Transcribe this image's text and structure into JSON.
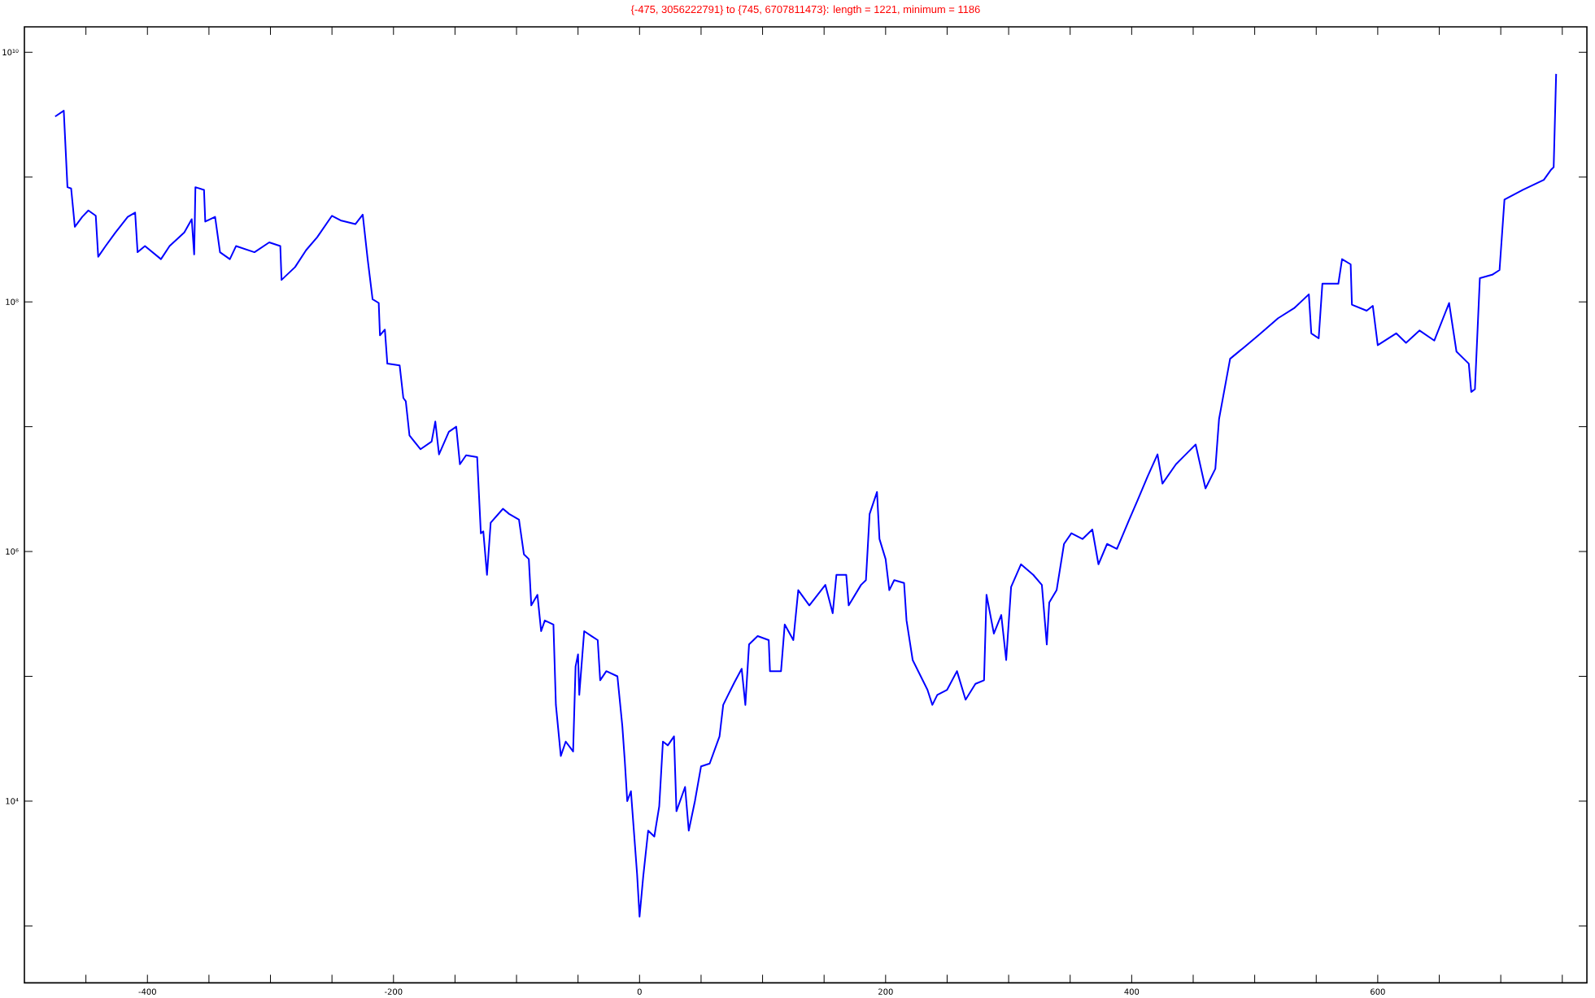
{
  "chart_data": {
    "type": "line",
    "title": "{-475, 3056222791} to {745, 6707811473}:      length = 1221, minimum = 1186",
    "log": "y",
    "color": "#0000ff",
    "xlim": [
      -500,
      770
    ],
    "ylim": [
      350,
      16000000000
    ],
    "xticks": [
      {
        "value": -450,
        "label": null
      },
      -400,
      {
        "value": -350,
        "label": null
      },
      -200,
      {
        "value": -300,
        "label": null
      },
      {
        "value": -250,
        "label": null
      },
      {
        "value": -150,
        "label": null
      },
      {
        "value": -100,
        "label": null
      },
      {
        "value": -50,
        "label": null
      },
      0,
      {
        "value": 50,
        "label": null
      },
      {
        "value": 100,
        "label": null
      },
      {
        "value": 150,
        "label": null
      },
      200,
      {
        "value": 250,
        "label": null
      },
      {
        "value": 300,
        "label": null
      },
      {
        "value": 350,
        "label": null
      },
      400,
      {
        "value": 450,
        "label": null
      },
      {
        "value": 500,
        "label": null
      },
      {
        "value": 550,
        "label": null
      },
      600,
      {
        "value": 650,
        "label": null
      },
      {
        "value": 700,
        "label": null
      },
      {
        "value": 750,
        "label": null
      }
    ],
    "yticks": [
      {
        "value": 1000,
        "label": null
      },
      {
        "value": 10000,
        "label": "10⁴"
      },
      {
        "value": 100000,
        "label": null
      },
      {
        "value": 1000000,
        "label": "10⁶"
      },
      {
        "value": 10000000,
        "label": null
      },
      {
        "value": 100000000,
        "label": "10⁸"
      },
      {
        "value": 1000000000,
        "label": null
      },
      {
        "value": 10000000000,
        "label": "10¹⁰"
      }
    ],
    "x": [
      -475,
      -468,
      -465,
      -462,
      -459,
      -453,
      -448,
      -442,
      -440,
      -434,
      -426,
      -416,
      -410,
      -408,
      -402,
      -389,
      -382,
      -370,
      -364,
      -362,
      -361,
      -354,
      -353,
      -345,
      -341,
      -333,
      -328,
      -313,
      -301,
      -292,
      -291,
      -280,
      -271,
      -262,
      -250,
      -243,
      -231,
      -225,
      -221,
      -217,
      -212,
      -211,
      -207,
      -205,
      -195,
      -192,
      -190,
      -187,
      -178,
      -169,
      -166,
      -163,
      -155,
      -149,
      -146,
      -141,
      -132,
      -129,
      -127,
      -124,
      -121,
      -111,
      -106,
      -98,
      -94,
      -90,
      -88,
      -83,
      -80,
      -77,
      -70,
      -68,
      -64,
      -60,
      -54,
      -52,
      -50,
      -49,
      -45,
      -39,
      -34,
      -32,
      -27,
      -18,
      -14,
      -12,
      -10,
      -7,
      -2,
      0,
      3,
      7,
      12,
      16,
      19,
      23,
      28,
      30,
      37,
      40,
      45,
      50,
      57,
      65,
      68,
      72,
      77,
      83,
      86,
      89,
      96,
      105,
      106,
      115,
      118,
      125,
      129,
      138,
      151,
      157,
      160,
      168,
      170,
      180,
      184,
      187,
      193,
      195,
      200,
      203,
      207,
      215,
      217,
      222,
      234,
      238,
      242,
      250,
      258,
      265,
      273,
      280,
      282,
      288,
      294,
      298,
      302,
      310,
      320,
      327,
      331,
      333,
      339,
      345,
      351,
      360,
      368,
      373,
      380,
      388,
      398,
      405,
      413,
      421,
      425,
      436,
      444,
      452,
      460,
      468,
      471,
      480,
      491,
      503,
      519,
      532,
      544,
      546,
      552,
      555,
      568,
      571,
      578,
      579,
      591,
      596,
      600,
      615,
      623,
      634,
      646,
      658,
      664,
      674,
      676,
      679,
      683,
      693,
      699,
      703,
      718,
      735,
      741,
      743,
      745
    ],
    "values": [
      3056222791,
      3400000000.0,
      830000000.0,
      810000000.0,
      400000000.0,
      480000000.0,
      540000000.0,
      490000000.0,
      230000000.0,
      280000000.0,
      360000000.0,
      480000000.0,
      520000000.0,
      250000000.0,
      280000000.0,
      220000000.0,
      280000000.0,
      360000000.0,
      460000000.0,
      240000000.0,
      830000000.0,
      790000000.0,
      440000000.0,
      480000000.0,
      250000000.0,
      220000000.0,
      280000000.0,
      250000000.0,
      300000000.0,
      280000000.0,
      150000000.0,
      190000000.0,
      260000000.0,
      330000000.0,
      490000000.0,
      450000000.0,
      420000000.0,
      500000000.0,
      220000000.0,
      105000000.0,
      98000000.0,
      54000000.0,
      60000000.0,
      32000000.0,
      31000000.0,
      17000000.0,
      16000000.0,
      8500000.0,
      6600000.0,
      7600000.0,
      11000000.0,
      6000000.0,
      9100000.0,
      10000000.0,
      5000000.0,
      5900000.0,
      5700000.0,
      1400000.0,
      1450000.0,
      650000.0,
      1700000.0,
      2200000.0,
      2000000.0,
      1800000.0,
      950000.0,
      870000.0,
      370000.0,
      450000.0,
      230000.0,
      280000.0,
      260000.0,
      59000.0,
      23000.0,
      30000.0,
      25000.0,
      120000.0,
      150000.0,
      71000.0,
      230000.0,
      210000.0,
      195000.0,
      93000.0,
      110000.0,
      100000.0,
      40000.0,
      21000.0,
      10000.0,
      12000.0,
      2600,
      1186,
      2500,
      5800,
      5200,
      9100,
      30000.0,
      28000.0,
      33000.0,
      8300,
      13000.0,
      5800,
      10000.0,
      19000.0,
      20000.0,
      33000.0,
      59000.0,
      71000.0,
      89000.0,
      115000.0,
      59000.0,
      180000.0,
      210000.0,
      195000.0,
      110000.0,
      110000.0,
      260000.0,
      195000.0,
      490000.0,
      370000.0,
      540000.0,
      320000.0,
      650000.0,
      650000.0,
      370000.0,
      540000.0,
      590000.0,
      2000000.0,
      3000000.0,
      1260000.0,
      870000.0,
      490000.0,
      590000.0,
      560000.0,
      280000.0,
      135000.0,
      78000.0,
      59000.0,
      71000.0,
      78000.0,
      110000.0,
      65000.0,
      87000.0,
      93000.0,
      450000.0,
      220000.0,
      310000.0,
      135000.0,
      520000.0,
      790000.0,
      650000.0,
      540000.0,
      180000.0,
      390000.0,
      490000.0,
      1150000.0,
      1400000.0,
      1260000.0,
      1500000.0,
      790000.0,
      1150000.0,
      1050000.0,
      1800000.0,
      2600000.0,
      4000000.0,
      6000000.0,
      3500000.0,
      5000000.0,
      6000000.0,
      7200000.0,
      3200000.0,
      4600000.0,
      11500000.0,
      35000000.0,
      43000000.0,
      54000000.0,
      74000000.0,
      89000000.0,
      115000000.0,
      56000000.0,
      51000000.0,
      140000000.0,
      140000000.0,
      220000000.0,
      200000000.0,
      95000000.0,
      85000000.0,
      93000000.0,
      45000000.0,
      56000000.0,
      47000000.0,
      59000000.0,
      49000000.0,
      98000000.0,
      40000000.0,
      32000000.0,
      19000000.0,
      20000000.0,
      155000000.0,
      165000000.0,
      180000000.0,
      660000000.0,
      790000000.0,
      950000000.0,
      1150000000.0,
      1200000000.0,
      6707811473
    ]
  }
}
